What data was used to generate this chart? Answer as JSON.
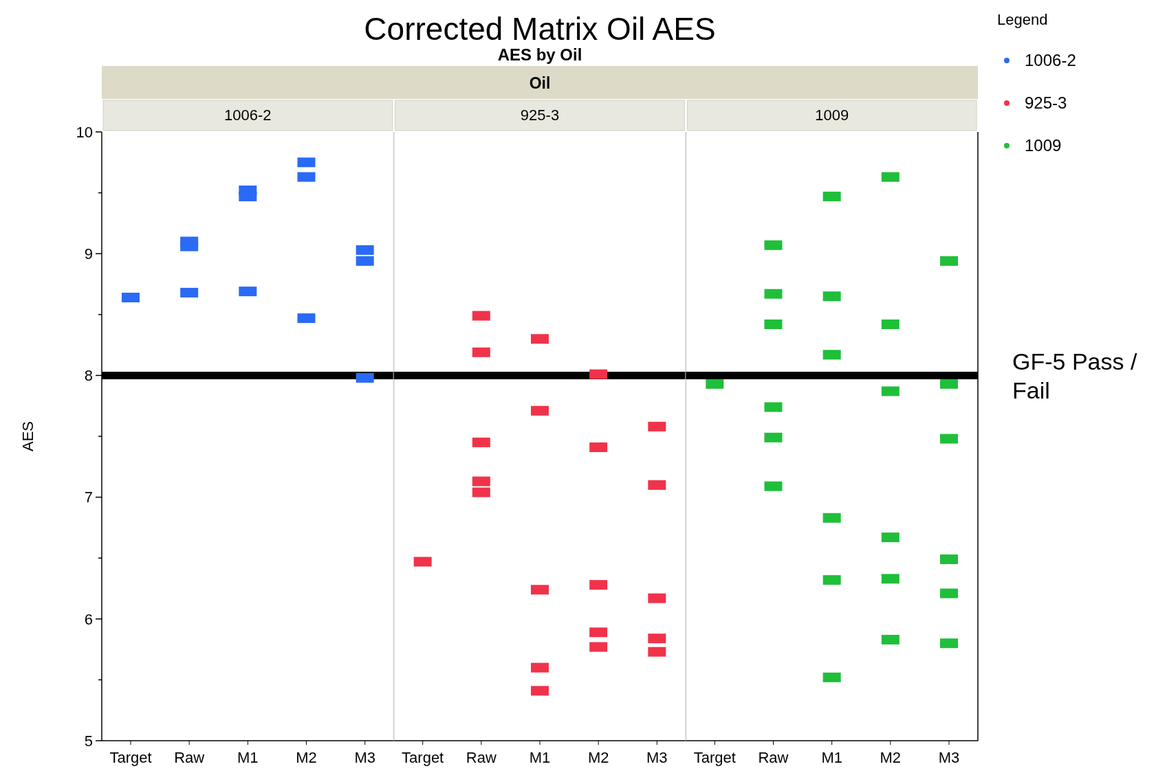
{
  "chart_data": [
    {
      "type": "scatter",
      "title": "1006-2",
      "annotations": [
        "Corrected Matrix Oil AES",
        "AES by Oil",
        "Oil"
      ],
      "ylabel": "AES",
      "categories": [
        "Target",
        "Raw",
        "M1",
        "M2",
        "M3"
      ],
      "ylim": [
        5,
        10
      ],
      "yticks": [
        5,
        {
          "value": 5.5,
          "label": null
        },
        6,
        {
          "value": 6.5,
          "label": null
        },
        7,
        {
          "value": 7.5,
          "label": null
        },
        8,
        {
          "value": 8.5,
          "label": null
        },
        9,
        {
          "value": 9.5,
          "label": null
        },
        10
      ],
      "marker": "square",
      "legend": "right",
      "ref_lines": [
        {
          "axis": "y",
          "value": 8,
          "color": "#000000"
        }
      ],
      "series": [
        {
          "name": "1006-2",
          "color": "#2a6af5",
          "x": [
            "Target",
            "Raw",
            "Raw",
            "Raw",
            "M1",
            "M1",
            "M1",
            "M2",
            "M2",
            "M2",
            "M3",
            "M3",
            "M3"
          ],
          "values": [
            8.64,
            9.1,
            9.06,
            8.68,
            9.52,
            9.47,
            8.69,
            9.75,
            9.63,
            8.47,
            9.03,
            8.94,
            7.98
          ]
        }
      ]
    },
    {
      "type": "scatter",
      "title": "925-3",
      "categories": [
        "Target",
        "Raw",
        "M1",
        "M2",
        "M3"
      ],
      "ylim": [
        5,
        10
      ],
      "tick_labels": "x",
      "marker": "square",
      "legend": "right",
      "ref_lines": [
        {
          "axis": "y",
          "value": 8,
          "color": "#000000"
        }
      ],
      "series": [
        {
          "name": "925-3",
          "color": "#f0334a",
          "x": [
            "Target",
            "Raw",
            "Raw",
            "Raw",
            "Raw",
            "Raw",
            "M1",
            "M1",
            "M1",
            "M1",
            "M1",
            "M2",
            "M2",
            "M2",
            "M2",
            "M2",
            "M3",
            "M3",
            "M3",
            "M3",
            "M3"
          ],
          "values": [
            6.47,
            8.49,
            8.19,
            7.45,
            7.13,
            7.04,
            8.3,
            7.71,
            6.24,
            5.6,
            5.41,
            8.01,
            7.41,
            6.28,
            5.89,
            5.77,
            7.58,
            7.1,
            6.17,
            5.84,
            5.73
          ]
        }
      ]
    },
    {
      "type": "scatter",
      "title": "1009",
      "categories": [
        "Target",
        "Raw",
        "M1",
        "M2",
        "M3"
      ],
      "ylim": [
        5,
        10
      ],
      "tick_labels": "x",
      "marker": "square",
      "legend": "right",
      "legend_title": "Legend",
      "ref_lines": [
        {
          "axis": "y",
          "value": 8,
          "label": "GF-5 Pass / Fail",
          "color": "#000000"
        }
      ],
      "series": [
        {
          "name": "1009",
          "color": "#1fbf3a",
          "x": [
            "Target",
            "Raw",
            "Raw",
            "Raw",
            "Raw",
            "Raw",
            "Raw",
            "M1",
            "M1",
            "M1",
            "M1",
            "M1",
            "M1",
            "M2",
            "M2",
            "M2",
            "M2",
            "M2",
            "M2",
            "M3",
            "M3",
            "M3",
            "M3",
            "M3",
            "M3"
          ],
          "values": [
            7.93,
            9.07,
            8.67,
            8.42,
            7.74,
            7.49,
            7.09,
            9.47,
            8.65,
            8.17,
            6.83,
            6.32,
            5.52,
            9.63,
            8.42,
            7.87,
            6.67,
            6.33,
            5.83,
            8.94,
            7.93,
            7.48,
            6.49,
            6.21,
            5.8
          ]
        }
      ]
    }
  ]
}
